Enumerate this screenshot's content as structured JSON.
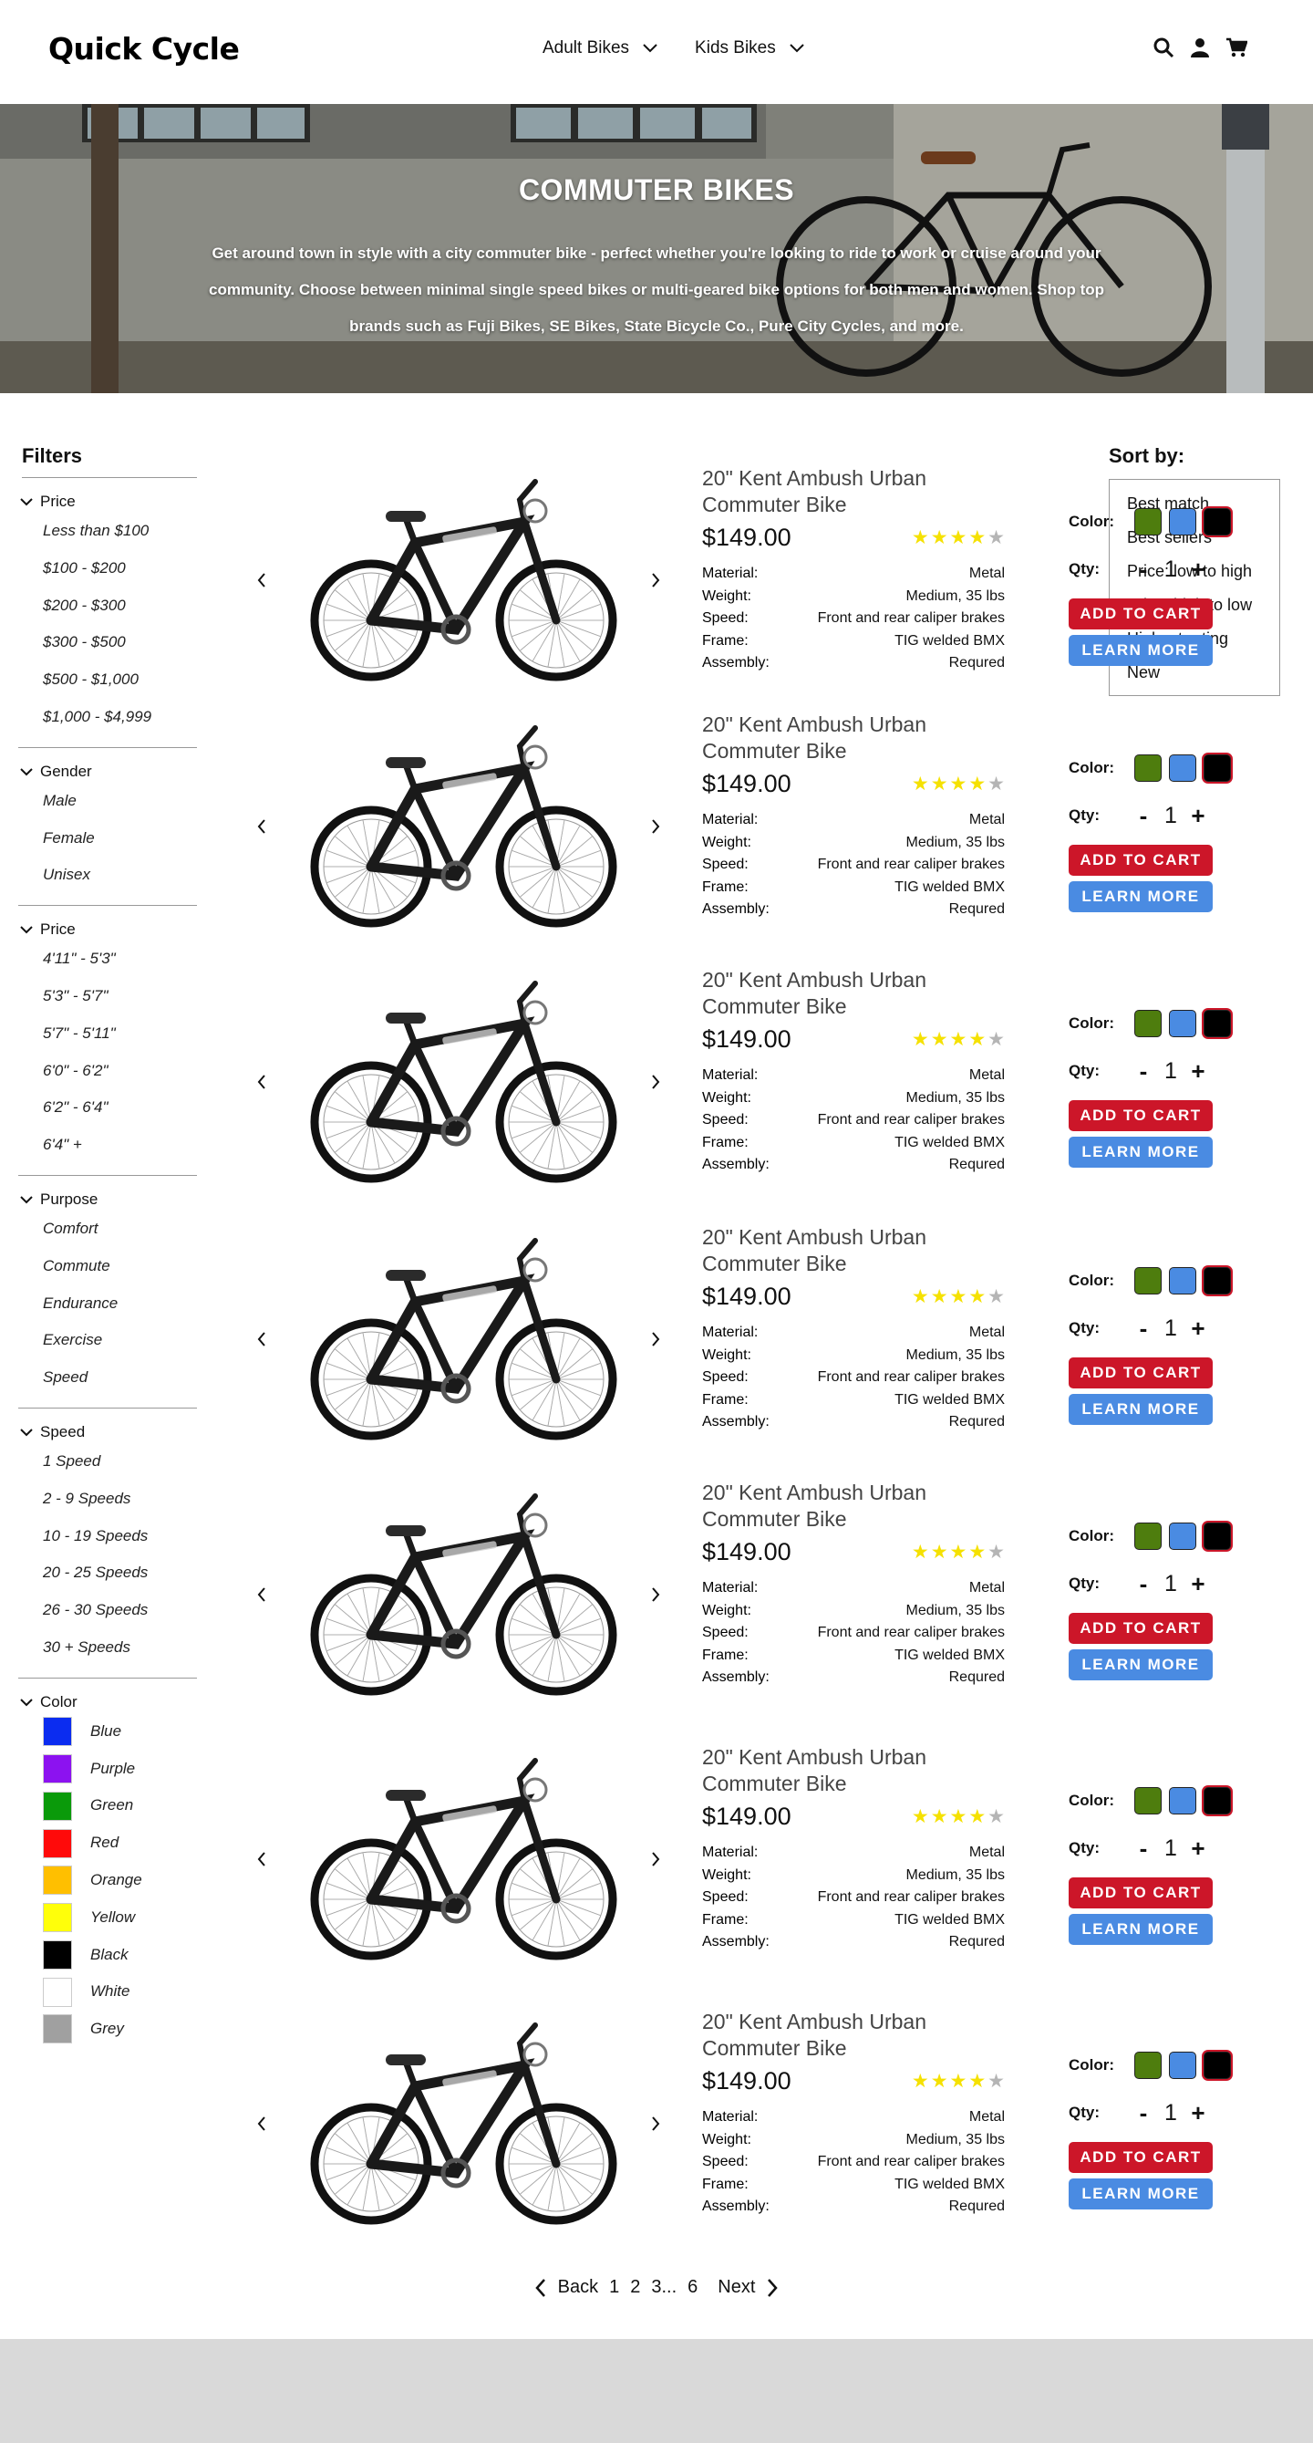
{
  "header": {
    "logo": "Quick Cycle",
    "nav": [
      {
        "label": "Adult Bikes"
      },
      {
        "label": "Kids Bikes"
      }
    ]
  },
  "hero": {
    "title": "COMMUTER BIKES",
    "text": "Get around town in style with a city commuter bike - perfect whether you're looking to ride to work or cruise around your community. Choose between minimal single speed bikes or multi-geared bike options for both men and women. Shop top brands such as Fuji Bikes, SE Bikes, State Bicycle Co., Pure City Cycles, and more."
  },
  "filters": {
    "title": "Filters",
    "groups": [
      {
        "label": "Price",
        "options": [
          "Less than $100",
          "$100 - $200",
          "$200 - $300",
          "$300 - $500",
          "$500 - $1,000",
          "$1,000 - $4,999"
        ]
      },
      {
        "label": "Gender",
        "options": [
          "Male",
          "Female",
          "Unisex"
        ]
      },
      {
        "label": "Price",
        "options": [
          "4'11\" - 5'3\"",
          "5'3\" - 5'7\"",
          "5'7\" - 5'11\"",
          "6'0\" - 6'2\"",
          "6'2\" - 6'4\"",
          "6'4\" +"
        ]
      },
      {
        "label": "Purpose",
        "options": [
          "Comfort",
          "Commute",
          "Endurance",
          "Exercise",
          "Speed"
        ]
      },
      {
        "label": "Speed",
        "options": [
          "1 Speed",
          "2 - 9 Speeds",
          "10 - 19 Speeds",
          "20 - 25 Speeds",
          "26 - 30 Speeds",
          "30 + Speeds"
        ]
      }
    ],
    "color_group": {
      "label": "Color",
      "options": [
        {
          "name": "Blue",
          "hex": "#0b2cf0"
        },
        {
          "name": "Purple",
          "hex": "#8c12f0"
        },
        {
          "name": "Green",
          "hex": "#0a9a0a"
        },
        {
          "name": "Red",
          "hex": "#ff0a0a"
        },
        {
          "name": "Orange",
          "hex": "#ffbf00"
        },
        {
          "name": "Yellow",
          "hex": "#ffff0a"
        },
        {
          "name": "Black",
          "hex": "#000000"
        },
        {
          "name": "White",
          "hex": "#ffffff"
        },
        {
          "name": "Grey",
          "hex": "#a0a0a0"
        }
      ]
    }
  },
  "sort": {
    "label": "Sort by:",
    "options": [
      "Best match",
      "Best sellers",
      "Price: low to high",
      "Price: high to low",
      "Highest rating",
      "New"
    ]
  },
  "product_common": {
    "color_label": "Color:",
    "qty_label": "Qty:",
    "minus": "-",
    "plus": "+",
    "add_to_cart": "ADD TO CART",
    "learn_more": "LEARN MORE",
    "color_swatches": [
      "#4e7d0e",
      "#4a8be2",
      "#000000"
    ],
    "star_filled": "#f5e100",
    "star_empty": "#b5b5b5"
  },
  "products": [
    {
      "title": "20\" Kent Ambush Urban Commuter Bike",
      "price": "$149.00",
      "rating": 4,
      "qty": "1",
      "specs": [
        {
          "label": "Material:",
          "value": "Metal"
        },
        {
          "label": "Weight:",
          "value": "Medium, 35 lbs"
        },
        {
          "label": "Speed:",
          "value": "Front and rear caliper brakes"
        },
        {
          "label": "Frame:",
          "value": "TIG welded BMX"
        },
        {
          "label": "Assembly:",
          "value": "Requred"
        }
      ]
    },
    {
      "title": "20\" Kent Ambush Urban Commuter Bike",
      "price": "$149.00",
      "rating": 4,
      "qty": "1",
      "specs": [
        {
          "label": "Material:",
          "value": "Metal"
        },
        {
          "label": "Weight:",
          "value": "Medium, 35 lbs"
        },
        {
          "label": "Speed:",
          "value": "Front and rear caliper brakes"
        },
        {
          "label": "Frame:",
          "value": "TIG welded BMX"
        },
        {
          "label": "Assembly:",
          "value": "Requred"
        }
      ]
    },
    {
      "title": "20\" Kent Ambush Urban Commuter Bike",
      "price": "$149.00",
      "rating": 4,
      "qty": "1",
      "specs": [
        {
          "label": "Material:",
          "value": "Metal"
        },
        {
          "label": "Weight:",
          "value": "Medium, 35 lbs"
        },
        {
          "label": "Speed:",
          "value": "Front and rear caliper brakes"
        },
        {
          "label": "Frame:",
          "value": "TIG welded BMX"
        },
        {
          "label": "Assembly:",
          "value": "Requred"
        }
      ]
    },
    {
      "title": "20\" Kent Ambush Urban Commuter Bike",
      "price": "$149.00",
      "rating": 4,
      "qty": "1",
      "specs": [
        {
          "label": "Material:",
          "value": "Metal"
        },
        {
          "label": "Weight:",
          "value": "Medium, 35 lbs"
        },
        {
          "label": "Speed:",
          "value": "Front and rear caliper brakes"
        },
        {
          "label": "Frame:",
          "value": "TIG welded BMX"
        },
        {
          "label": "Assembly:",
          "value": "Requred"
        }
      ]
    },
    {
      "title": "20\" Kent Ambush Urban Commuter Bike",
      "price": "$149.00",
      "rating": 4,
      "qty": "1",
      "specs": [
        {
          "label": "Material:",
          "value": "Metal"
        },
        {
          "label": "Weight:",
          "value": "Medium, 35 lbs"
        },
        {
          "label": "Speed:",
          "value": "Front and rear caliper brakes"
        },
        {
          "label": "Frame:",
          "value": "TIG welded BMX"
        },
        {
          "label": "Assembly:",
          "value": "Requred"
        }
      ]
    },
    {
      "title": "20\" Kent Ambush Urban Commuter Bike",
      "price": "$149.00",
      "rating": 4,
      "qty": "1",
      "specs": [
        {
          "label": "Material:",
          "value": "Metal"
        },
        {
          "label": "Weight:",
          "value": "Medium, 35 lbs"
        },
        {
          "label": "Speed:",
          "value": "Front and rear caliper brakes"
        },
        {
          "label": "Frame:",
          "value": "TIG welded BMX"
        },
        {
          "label": "Assembly:",
          "value": "Requred"
        }
      ]
    },
    {
      "title": "20\" Kent Ambush Urban Commuter Bike",
      "price": "$149.00",
      "rating": 4,
      "qty": "1",
      "specs": [
        {
          "label": "Material:",
          "value": "Metal"
        },
        {
          "label": "Weight:",
          "value": "Medium, 35 lbs"
        },
        {
          "label": "Speed:",
          "value": "Front and rear caliper brakes"
        },
        {
          "label": "Frame:",
          "value": "TIG welded BMX"
        },
        {
          "label": "Assembly:",
          "value": "Requred"
        }
      ]
    }
  ],
  "pagination": {
    "back": "Back",
    "pages": [
      "1",
      "2",
      "3...",
      "6"
    ],
    "next": "Next"
  }
}
